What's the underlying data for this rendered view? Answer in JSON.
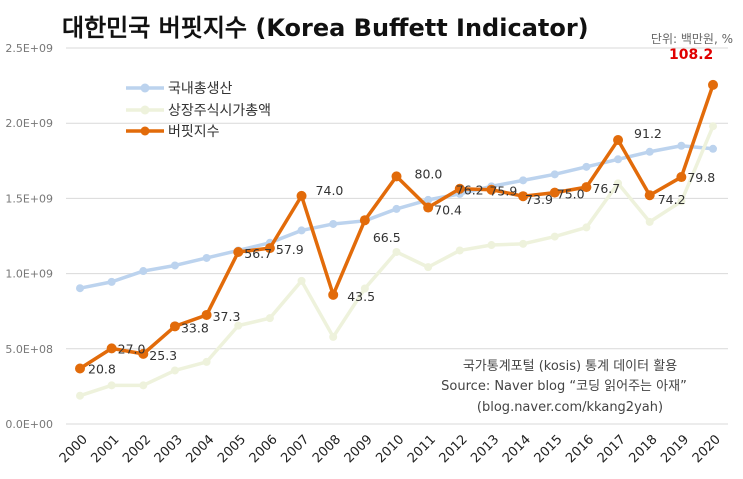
{
  "title": "대한민국 버핏지수 (Korea Buffett Indicator)",
  "unit_note": "단위: 백만원, %",
  "source_lines": [
    "국가통계포털 (kosis) 통계 데이터 활용",
    "Source: Naver blog “코딩 읽어주는 아재”",
    "(blog.naver.com/kkang2yah)"
  ],
  "colors": {
    "gdp": "#bcd3ee",
    "mcap": "#eef2dc",
    "buffett": "#e26b0a",
    "highlight": "#e00000"
  },
  "chart_data": {
    "type": "line",
    "x": [
      "2000",
      "2001",
      "2002",
      "2003",
      "2004",
      "2005",
      "2006",
      "2007",
      "2008",
      "2009",
      "2010",
      "2011",
      "2012",
      "2013",
      "2014",
      "2015",
      "2016",
      "2017",
      "2018",
      "2019",
      "2020"
    ],
    "yticks": [
      "0.0E+00",
      "5.0E+08",
      "1.0E+09",
      "1.5E+09",
      "2.0E+09",
      "2.5E+09"
    ],
    "ylim": [
      0,
      2500000000
    ],
    "legend": "top-left",
    "grid": true,
    "series": [
      {
        "name": "국내총생산",
        "values": [
          903000000,
          945000000,
          1017000000,
          1054000000,
          1104000000,
          1154000000,
          1205000000,
          1287000000,
          1330000000,
          1351000000,
          1430000000,
          1490000000,
          1530000000,
          1580000000,
          1620000000,
          1660000000,
          1710000000,
          1760000000,
          1810000000,
          1850000000,
          1830000000
        ]
      },
      {
        "name": "상장주식시가총액",
        "values": [
          188000000,
          257000000,
          257000000,
          356000000,
          413000000,
          654000000,
          704000000,
          952000000,
          579000000,
          901000000,
          1144000000,
          1043000000,
          1154000000,
          1190000000,
          1198000000,
          1246000000,
          1307000000,
          1600000000,
          1344000000,
          1480000000,
          1980000000
        ]
      },
      {
        "name": "버핏지수",
        "values": [
          20.8,
          27.0,
          25.3,
          33.8,
          37.3,
          56.7,
          57.9,
          74.0,
          43.5,
          66.5,
          80.0,
          70.4,
          76.2,
          75.9,
          73.9,
          75.0,
          76.7,
          91.2,
          74.2,
          79.8,
          108.2
        ],
        "labels": [
          "20.8",
          "27.0",
          "25.3",
          "33.8",
          "37.3",
          "56.7",
          "57.9",
          "74.0",
          "43.5",
          "66.5",
          "80.0",
          "70.4",
          "76.2",
          "75.9",
          "73.9",
          "75.0",
          "76.7",
          "91.2",
          "74.2",
          "79.8",
          "108.2"
        ]
      }
    ]
  }
}
